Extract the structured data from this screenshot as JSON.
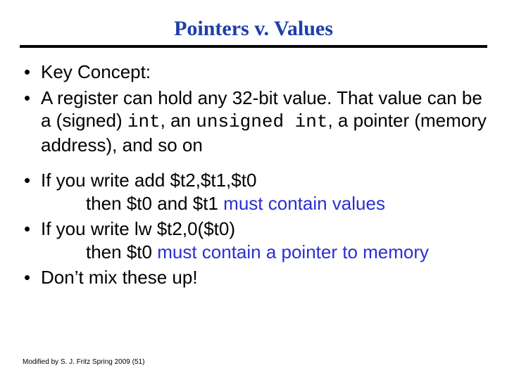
{
  "colors": {
    "title_color": "#1f3ea8",
    "rule_color": "#000000",
    "body_text_color": "#000000",
    "emphasis_color": "#2a2fd0",
    "background": "#ffffff"
  },
  "fonts": {
    "title_family": "Times New Roman",
    "title_size_pt": 30,
    "title_weight": "bold",
    "body_family": "Arial",
    "body_size_pt": 26,
    "mono_family": "Courier New",
    "footer_size_pt": 10
  },
  "title": "Pointers v. Values",
  "bullets": {
    "b1": "Key Concept:",
    "b2_p1": "A register can hold any 32-bit value.  That value can be a (signed) ",
    "b2_code1": "int",
    "b2_p2": ", an ",
    "b2_code2": "unsigned int",
    "b2_p3": ", a pointer (memory address), and so on",
    "b3_p1": "If you write    add  $t2,$t1,$t0",
    "b3_sub_p1": "then $t0 and $t1 ",
    "b3_sub_em": "must contain values",
    "b4_p1": "If you write    lw $t2,0($t0)",
    "b4_sub_p1": "then $t0 ",
    "b4_sub_em": "must contain a pointer to memory",
    "b5": "Don’t mix these up!"
  },
  "footer": "Modified by S. J. Fritz  Spring 2009 (51)"
}
